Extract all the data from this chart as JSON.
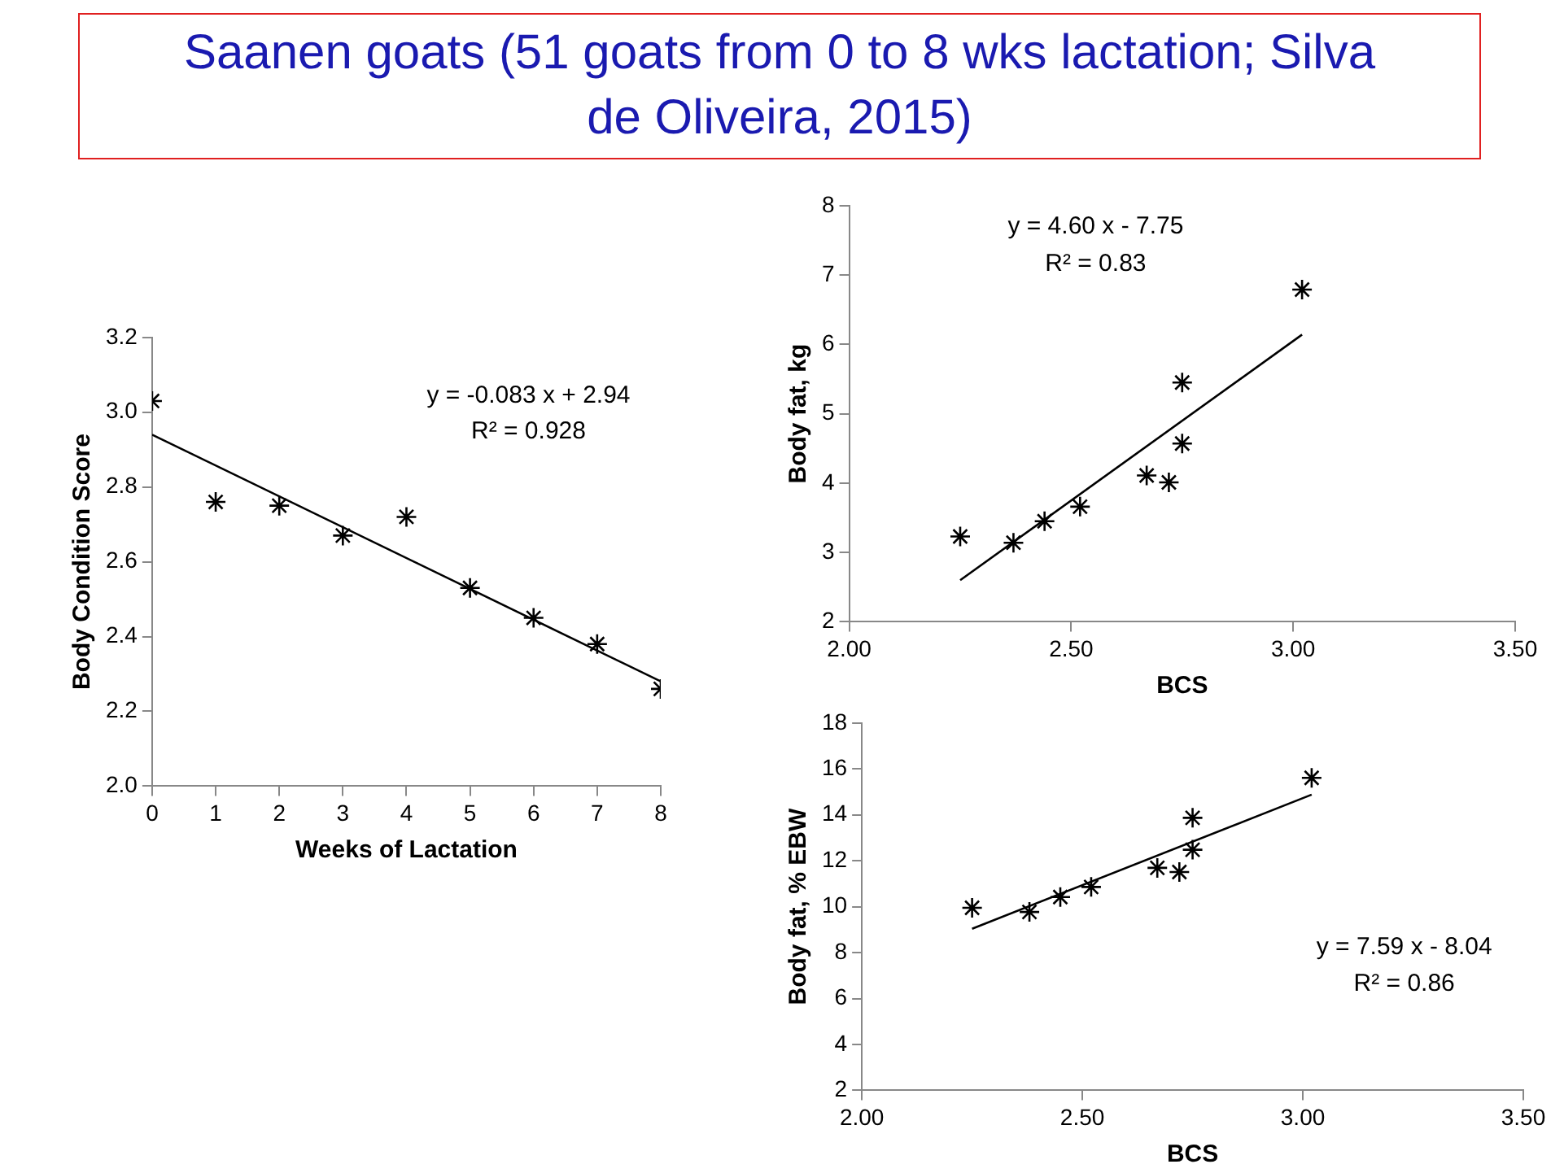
{
  "chart_data": [
    {
      "type": "scatter",
      "title": "Saanen goats (51 goats from 0 to 8 wks lactation; Silva de Oliveira, 2015)",
      "xlabel": "Weeks of Lactation",
      "ylabel": "Body Condition Score",
      "xlim": [
        0,
        8
      ],
      "xticks": [
        0,
        1,
        2,
        3,
        4,
        5,
        6,
        7,
        8
      ],
      "ylim": [
        2,
        3.2
      ],
      "yticks": [
        {
          "value": 2,
          "label": "2.0"
        },
        {
          "value": 2.2,
          "label": "2.2"
        },
        {
          "value": 2.4,
          "label": "2.4"
        },
        {
          "value": 2.6,
          "label": "2.6"
        },
        {
          "value": 2.8,
          "label": "2.8"
        },
        {
          "value": 3,
          "label": "3.0"
        },
        {
          "value": 3.2,
          "label": "3.2"
        }
      ],
      "grid": false,
      "legend": false,
      "annotations": [
        "y = -0.083 x + 2.94",
        "R² = 0.928"
      ],
      "series": [
        {
          "marker": "cross",
          "color": "#000000",
          "x": [
            0,
            1,
            2,
            3,
            4,
            5,
            6,
            7,
            8
          ],
          "values": [
            3.03,
            2.76,
            2.75,
            2.67,
            2.72,
            2.53,
            2.45,
            2.38,
            2.26
          ]
        },
        {
          "type": "line",
          "marker": "none",
          "color": "#000000",
          "x": [
            0,
            8
          ],
          "values": [
            2.94,
            2.28
          ]
        }
      ]
    },
    {
      "type": "scatter",
      "xlabel": "BCS",
      "ylabel": "Body fat, kg",
      "xlim": [
        2,
        3.5
      ],
      "xticks": [
        {
          "value": 2,
          "label": "2.00"
        },
        {
          "value": 2.5,
          "label": "2.50"
        },
        {
          "value": 3,
          "label": "3.00"
        },
        {
          "value": 3.5,
          "label": "3.50"
        }
      ],
      "ylim": [
        2,
        8
      ],
      "yticks": [
        2,
        3,
        4,
        5,
        6,
        7,
        8
      ],
      "grid": false,
      "legend": false,
      "annotations": [
        "y = 4.60 x - 7.75",
        "R² = 0.83"
      ],
      "series": [
        {
          "marker": "cross",
          "color": "#000000",
          "x": [
            2.25,
            2.37,
            2.44,
            2.52,
            2.67,
            2.72,
            2.75,
            2.75,
            3.02
          ],
          "values": [
            3.23,
            3.14,
            3.45,
            3.66,
            4.11,
            4.01,
            4.57,
            5.45,
            6.79
          ]
        },
        {
          "type": "line",
          "marker": "none",
          "color": "#000000",
          "x": [
            2.25,
            3.02
          ],
          "values": [
            2.6,
            6.14
          ]
        }
      ]
    },
    {
      "type": "scatter",
      "xlabel": "BCS",
      "ylabel": "Body fat, % EBW",
      "xlim": [
        2,
        3.5
      ],
      "xticks": [
        {
          "value": 2,
          "label": "2.00"
        },
        {
          "value": 2.5,
          "label": "2.50"
        },
        {
          "value": 3,
          "label": "3.00"
        },
        {
          "value": 3.5,
          "label": "3.50"
        }
      ],
      "ylim": [
        2,
        18
      ],
      "yticks": [
        2,
        4,
        6,
        8,
        10,
        12,
        14,
        16,
        18
      ],
      "grid": false,
      "legend": false,
      "annotations": [
        "y = 7.59 x - 8.04",
        "R² = 0.86"
      ],
      "series": [
        {
          "marker": "cross",
          "color": "#000000",
          "x": [
            2.25,
            2.38,
            2.45,
            2.52,
            2.67,
            2.72,
            2.75,
            2.75,
            3.02
          ],
          "values": [
            9.95,
            9.77,
            10.42,
            10.86,
            11.69,
            11.51,
            12.48,
            13.87,
            15.61
          ]
        },
        {
          "type": "line",
          "marker": "none",
          "color": "#000000",
          "x": [
            2.25,
            3.02
          ],
          "values": [
            9.04,
            14.88
          ]
        }
      ]
    }
  ]
}
